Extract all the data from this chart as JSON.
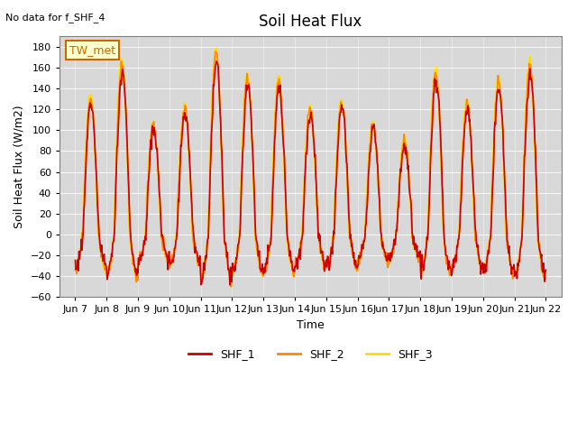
{
  "title": "Soil Heat Flux",
  "subtitle": "No data for f_SHF_4",
  "ylabel": "Soil Heat Flux (W/m2)",
  "xlabel": "Time",
  "station_label": "TW_met",
  "ylim": [
    -60,
    190
  ],
  "yticks": [
    -60,
    -40,
    -20,
    0,
    20,
    40,
    60,
    80,
    100,
    120,
    140,
    160,
    180
  ],
  "xtick_labels": [
    "Jun 7",
    "Jun 8",
    "Jun 9",
    "Jun 10",
    "Jun 11",
    "Jun 12",
    "Jun 13",
    "Jun 14",
    "Jun 15",
    "Jun 16",
    "Jun 17",
    "Jun 18",
    "Jun 19",
    "Jun 20",
    "Jun 21",
    "Jun 22"
  ],
  "colors": {
    "SHF_1": "#cc0000",
    "SHF_2": "#ff8800",
    "SHF_3": "#ffdd00"
  },
  "legend_labels": [
    "SHF_1",
    "SHF_2",
    "SHF_3"
  ],
  "background_color": "#e8e8e8",
  "plot_bg_color": "#d8d8d8",
  "line_width": 1.2
}
